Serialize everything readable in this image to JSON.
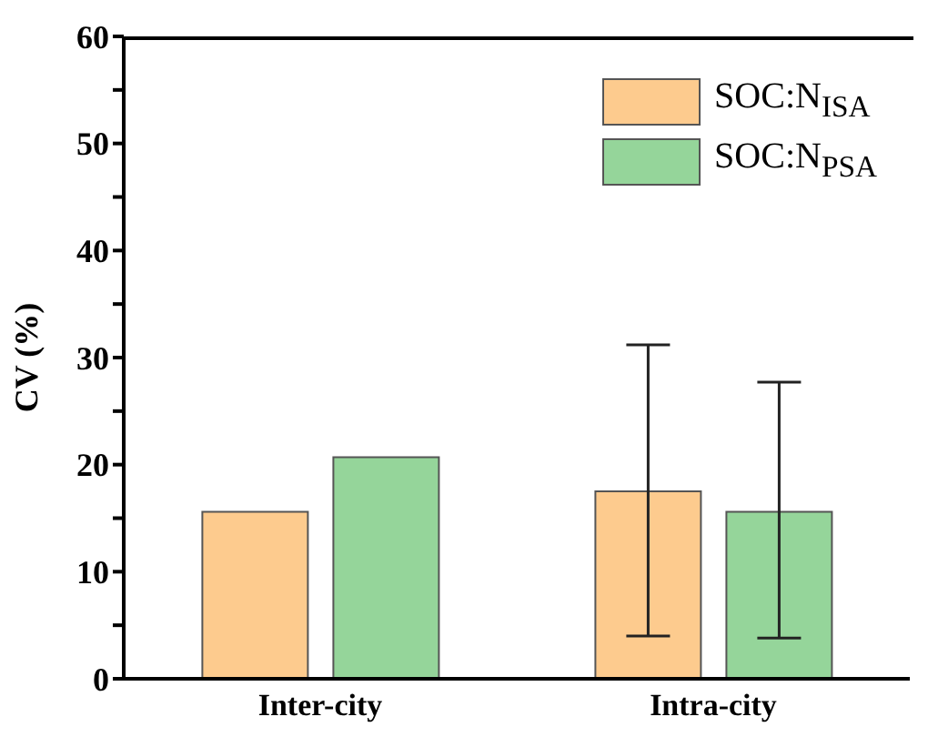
{
  "chart_data": {
    "type": "bar",
    "ylabel": "CV (%)",
    "categories": [
      "Inter-city",
      "Intra-city"
    ],
    "series": [
      {
        "name": "SOC:N$_{ISA}$",
        "color": "#fdcb8e",
        "values": [
          15.6,
          17.5
        ],
        "errors": [
          null,
          [
            4.0,
            31.2
          ]
        ]
      },
      {
        "name": "SOC:N$_{PSA}$",
        "color": "#95d59a",
        "values": [
          20.7,
          15.6
        ],
        "errors": [
          null,
          [
            3.8,
            27.7
          ]
        ]
      }
    ],
    "ylim": [
      0,
      60
    ],
    "yticks": [
      0,
      {
        "value": 5,
        "label": null
      },
      10,
      {
        "value": 15,
        "label": null
      },
      20,
      {
        "value": 25,
        "label": null
      },
      30,
      {
        "value": 35,
        "label": null
      },
      40,
      {
        "value": 45,
        "label": null
      },
      50,
      {
        "value": 55,
        "label": null
      },
      60
    ],
    "legend": "top right",
    "grid": false
  }
}
